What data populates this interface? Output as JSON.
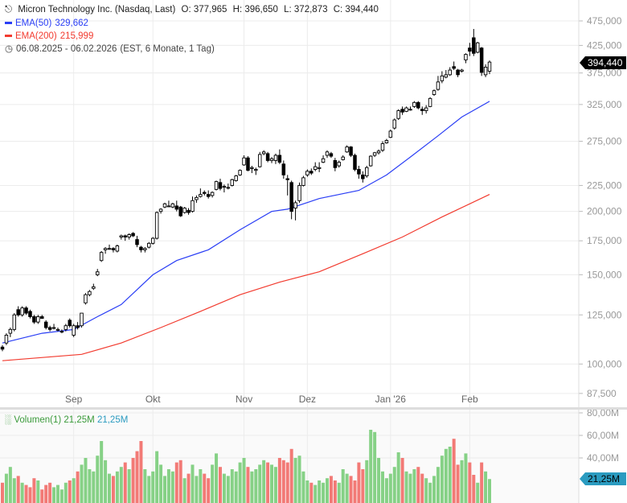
{
  "header": {
    "title": "Micron Technology Inc. (Nasdaq, Last)",
    "open": "O: 377,965",
    "high": "H: 396,650",
    "low": "L: 372,873",
    "close": "C: 394,440",
    "ema50_label": "EMA(50)",
    "ema50_value": "329,662",
    "ema200_label": "EMA(200)",
    "ema200_value": "215,999",
    "range": "06.08.2025 - 06.02.2026",
    "range_info": "(EST, 6 Monate, 1 Tag)"
  },
  "volume_legend": {
    "label": "Volumen(1)",
    "value1": "21,25M",
    "value2": "21,25M"
  },
  "last_price_tag": "394,440",
  "last_volume_tag": "21,25M",
  "colors": {
    "ema50": "#2a3ef5",
    "ema200": "#f23b2f",
    "vol_up": "#86d186",
    "vol_down": "#f27a76",
    "vol_tag": "#2a9bc0"
  },
  "chart_data": {
    "type": "candlestick",
    "title": "Micron Technology Inc. (Nasdaq, Last)",
    "price_unit": "thousands",
    "y_scale": "log",
    "ylim": [
      85,
      500
    ],
    "y_ticks": [
      [
        "475,000",
        475
      ],
      [
        "425,000",
        425
      ],
      [
        "375,000",
        375
      ],
      [
        "325,000",
        325
      ],
      [
        "275,000",
        275
      ],
      [
        "225,000",
        225
      ],
      [
        "200,000",
        200
      ],
      [
        "175,000",
        175
      ],
      [
        "150,000",
        150
      ],
      [
        "125,000",
        125
      ],
      [
        "100,000",
        100
      ],
      [
        "87,500",
        87.5
      ]
    ],
    "x_ticks": [
      [
        "Sep",
        18
      ],
      [
        "Okt",
        38
      ],
      [
        "Nov",
        61
      ],
      [
        "Dez",
        77
      ],
      [
        "Jan '26",
        98
      ],
      [
        "Feb",
        118
      ]
    ],
    "ohlc": [
      [
        108,
        109,
        106,
        107
      ],
      [
        110,
        115,
        109,
        114
      ],
      [
        115,
        118,
        113,
        117
      ],
      [
        117,
        126,
        116,
        125
      ],
      [
        128,
        130,
        124,
        125
      ],
      [
        125,
        130,
        124,
        129
      ],
      [
        129,
        130,
        125,
        126
      ],
      [
        127,
        128,
        123,
        124
      ],
      [
        124,
        125,
        120,
        121
      ],
      [
        121,
        125,
        120,
        124
      ],
      [
        124,
        125,
        123,
        123
      ],
      [
        121,
        122,
        117,
        118
      ],
      [
        118,
        119,
        116,
        117
      ],
      [
        118,
        120,
        117,
        118
      ],
      [
        117,
        118,
        116,
        117
      ],
      [
        116,
        117,
        115,
        116
      ],
      [
        117,
        120,
        116,
        119
      ],
      [
        122,
        123,
        118,
        119
      ],
      [
        114,
        120,
        113,
        119
      ],
      [
        119,
        121,
        117,
        118
      ],
      [
        119,
        126,
        118,
        126
      ],
      [
        132,
        138,
        131,
        137
      ],
      [
        137,
        140,
        136,
        139
      ],
      [
        141,
        144,
        140,
        142
      ],
      [
        150,
        154,
        149,
        152
      ],
      [
        160,
        167,
        159,
        166
      ],
      [
        168,
        170,
        165,
        169
      ],
      [
        169,
        172,
        168,
        169
      ],
      [
        169,
        170,
        166,
        168
      ],
      [
        167,
        172,
        166,
        171
      ],
      [
        178,
        180,
        176,
        179
      ],
      [
        179,
        180,
        175,
        178
      ],
      [
        178,
        181,
        176,
        180
      ],
      [
        181,
        182,
        178,
        179
      ],
      [
        176,
        179,
        170,
        172
      ],
      [
        170,
        171,
        166,
        168
      ],
      [
        168,
        170,
        166,
        169
      ],
      [
        170,
        174,
        169,
        173
      ],
      [
        173,
        178,
        172,
        177
      ],
      [
        177,
        200,
        176,
        199
      ],
      [
        200,
        203,
        198,
        202
      ],
      [
        204,
        208,
        203,
        207
      ],
      [
        205,
        210,
        204,
        205
      ],
      [
        204,
        208,
        203,
        207
      ],
      [
        205,
        210,
        200,
        202
      ],
      [
        204,
        205,
        195,
        196
      ],
      [
        199,
        204,
        198,
        203
      ],
      [
        201,
        203,
        197,
        199
      ],
      [
        200,
        214,
        199,
        210
      ],
      [
        211,
        215,
        208,
        213
      ],
      [
        214,
        222,
        213,
        216
      ],
      [
        218,
        220,
        215,
        217
      ],
      [
        216,
        220,
        212,
        214
      ],
      [
        215,
        219,
        213,
        218
      ],
      [
        221,
        230,
        220,
        229
      ],
      [
        228,
        232,
        220,
        222
      ],
      [
        224,
        226,
        218,
        224
      ],
      [
        223,
        227,
        221,
        223
      ],
      [
        225,
        232,
        224,
        231
      ],
      [
        230,
        236,
        229,
        235
      ],
      [
        236,
        242,
        235,
        241
      ],
      [
        247,
        258,
        246,
        255
      ],
      [
        255,
        257,
        240,
        241
      ],
      [
        243,
        246,
        238,
        244
      ],
      [
        241,
        244,
        236,
        242
      ],
      [
        245,
        262,
        244,
        259
      ],
      [
        260,
        264,
        258,
        262
      ],
      [
        260,
        262,
        250,
        252
      ],
      [
        252,
        256,
        249,
        254
      ],
      [
        252,
        260,
        248,
        258
      ],
      [
        258,
        265,
        248,
        250
      ],
      [
        248,
        252,
        232,
        236
      ],
      [
        232,
        236,
        215,
        231
      ],
      [
        228,
        230,
        193,
        200
      ],
      [
        203,
        210,
        192,
        208
      ],
      [
        210,
        228,
        208,
        225
      ],
      [
        225,
        235,
        224,
        233
      ],
      [
        236,
        242,
        234,
        240
      ],
      [
        240,
        243,
        236,
        238
      ],
      [
        242,
        250,
        240,
        245
      ],
      [
        243,
        250,
        239,
        244
      ],
      [
        250,
        258,
        249,
        254
      ],
      [
        258,
        264,
        255,
        262
      ],
      [
        260,
        262,
        255,
        257
      ],
      [
        252,
        255,
        240,
        244
      ],
      [
        246,
        252,
        244,
        250
      ],
      [
        253,
        258,
        252,
        256
      ],
      [
        262,
        270,
        261,
        268
      ],
      [
        268,
        269,
        256,
        258
      ],
      [
        258,
        260,
        240,
        242
      ],
      [
        242,
        246,
        232,
        237
      ],
      [
        236,
        240,
        228,
        232
      ],
      [
        235,
        246,
        233,
        244
      ],
      [
        246,
        258,
        245,
        257
      ],
      [
        258,
        262,
        256,
        261
      ],
      [
        261,
        265,
        259,
        263
      ],
      [
        264,
        275,
        262,
        272
      ],
      [
        273,
        278,
        272,
        276
      ],
      [
        280,
        290,
        279,
        288
      ],
      [
        292,
        305,
        290,
        303
      ],
      [
        305,
        318,
        303,
        316
      ],
      [
        318,
        322,
        310,
        314
      ],
      [
        315,
        322,
        314,
        320
      ],
      [
        318,
        322,
        316,
        318
      ],
      [
        322,
        330,
        320,
        328
      ],
      [
        328,
        330,
        318,
        320
      ],
      [
        318,
        322,
        310,
        316
      ],
      [
        316,
        324,
        312,
        320
      ],
      [
        322,
        336,
        321,
        334
      ],
      [
        340,
        348,
        338,
        346
      ],
      [
        348,
        370,
        346,
        360
      ],
      [
        362,
        378,
        358,
        370
      ],
      [
        368,
        380,
        366,
        372
      ],
      [
        372,
        385,
        370,
        380
      ],
      [
        386,
        395,
        380,
        383
      ],
      [
        380,
        382,
        368,
        372
      ],
      [
        378,
        382,
        376,
        380
      ],
      [
        398,
        410,
        392,
        408
      ],
      [
        420,
        430,
        405,
        414
      ],
      [
        440,
        458,
        405,
        410
      ],
      [
        412,
        432,
        410,
        430
      ],
      [
        420,
        422,
        370,
        376
      ],
      [
        372,
        390,
        368,
        385
      ],
      [
        378,
        397,
        373,
        394
      ]
    ],
    "ema50": [
      [
        0,
        110
      ],
      [
        10,
        115
      ],
      [
        18,
        117
      ],
      [
        24,
        124
      ],
      [
        30,
        131
      ],
      [
        38,
        150
      ],
      [
        44,
        160
      ],
      [
        52,
        168
      ],
      [
        60,
        184
      ],
      [
        68,
        200
      ],
      [
        72,
        202
      ],
      [
        80,
        212
      ],
      [
        90,
        220
      ],
      [
        97,
        236
      ],
      [
        103,
        256
      ],
      [
        110,
        282
      ],
      [
        116,
        307
      ],
      [
        123,
        329.7
      ]
    ],
    "ema200": [
      [
        0,
        101.5
      ],
      [
        20,
        104.5
      ],
      [
        30,
        110
      ],
      [
        40,
        118
      ],
      [
        50,
        127
      ],
      [
        60,
        137
      ],
      [
        70,
        145
      ],
      [
        80,
        152
      ],
      [
        91,
        165
      ],
      [
        101,
        178
      ],
      [
        111,
        195
      ],
      [
        123,
        216
      ]
    ],
    "volume_unit": "millions",
    "volume_ticks": [
      [
        "80,00M",
        80
      ],
      [
        "60,00M",
        60
      ],
      [
        "40,00M",
        40
      ]
    ],
    "volume": [
      18,
      26,
      32,
      22,
      24,
      18,
      16,
      14,
      22,
      20,
      12,
      16,
      18,
      14,
      16,
      12,
      18,
      20,
      22,
      28,
      34,
      40,
      30,
      28,
      42,
      55,
      38,
      26,
      24,
      28,
      32,
      36,
      30,
      40,
      46,
      55,
      30,
      24,
      28,
      46,
      34,
      24,
      30,
      28,
      36,
      38,
      22,
      26,
      34,
      24,
      30,
      26,
      22,
      34,
      44,
      32,
      26,
      24,
      30,
      28,
      36,
      40,
      32,
      28,
      30,
      34,
      38,
      36,
      34,
      32,
      40,
      38,
      36,
      48,
      40,
      42,
      28,
      20,
      18,
      16,
      20,
      18,
      22,
      24,
      20,
      18,
      30,
      26,
      24,
      20,
      36,
      30,
      38,
      65,
      63,
      40,
      28,
      22,
      26,
      32,
      45,
      40,
      28,
      26,
      30,
      32,
      26,
      22,
      18,
      24,
      32,
      42,
      48,
      50,
      57,
      34,
      38,
      44,
      36,
      25,
      18,
      36,
      28,
      21.25
    ]
  }
}
